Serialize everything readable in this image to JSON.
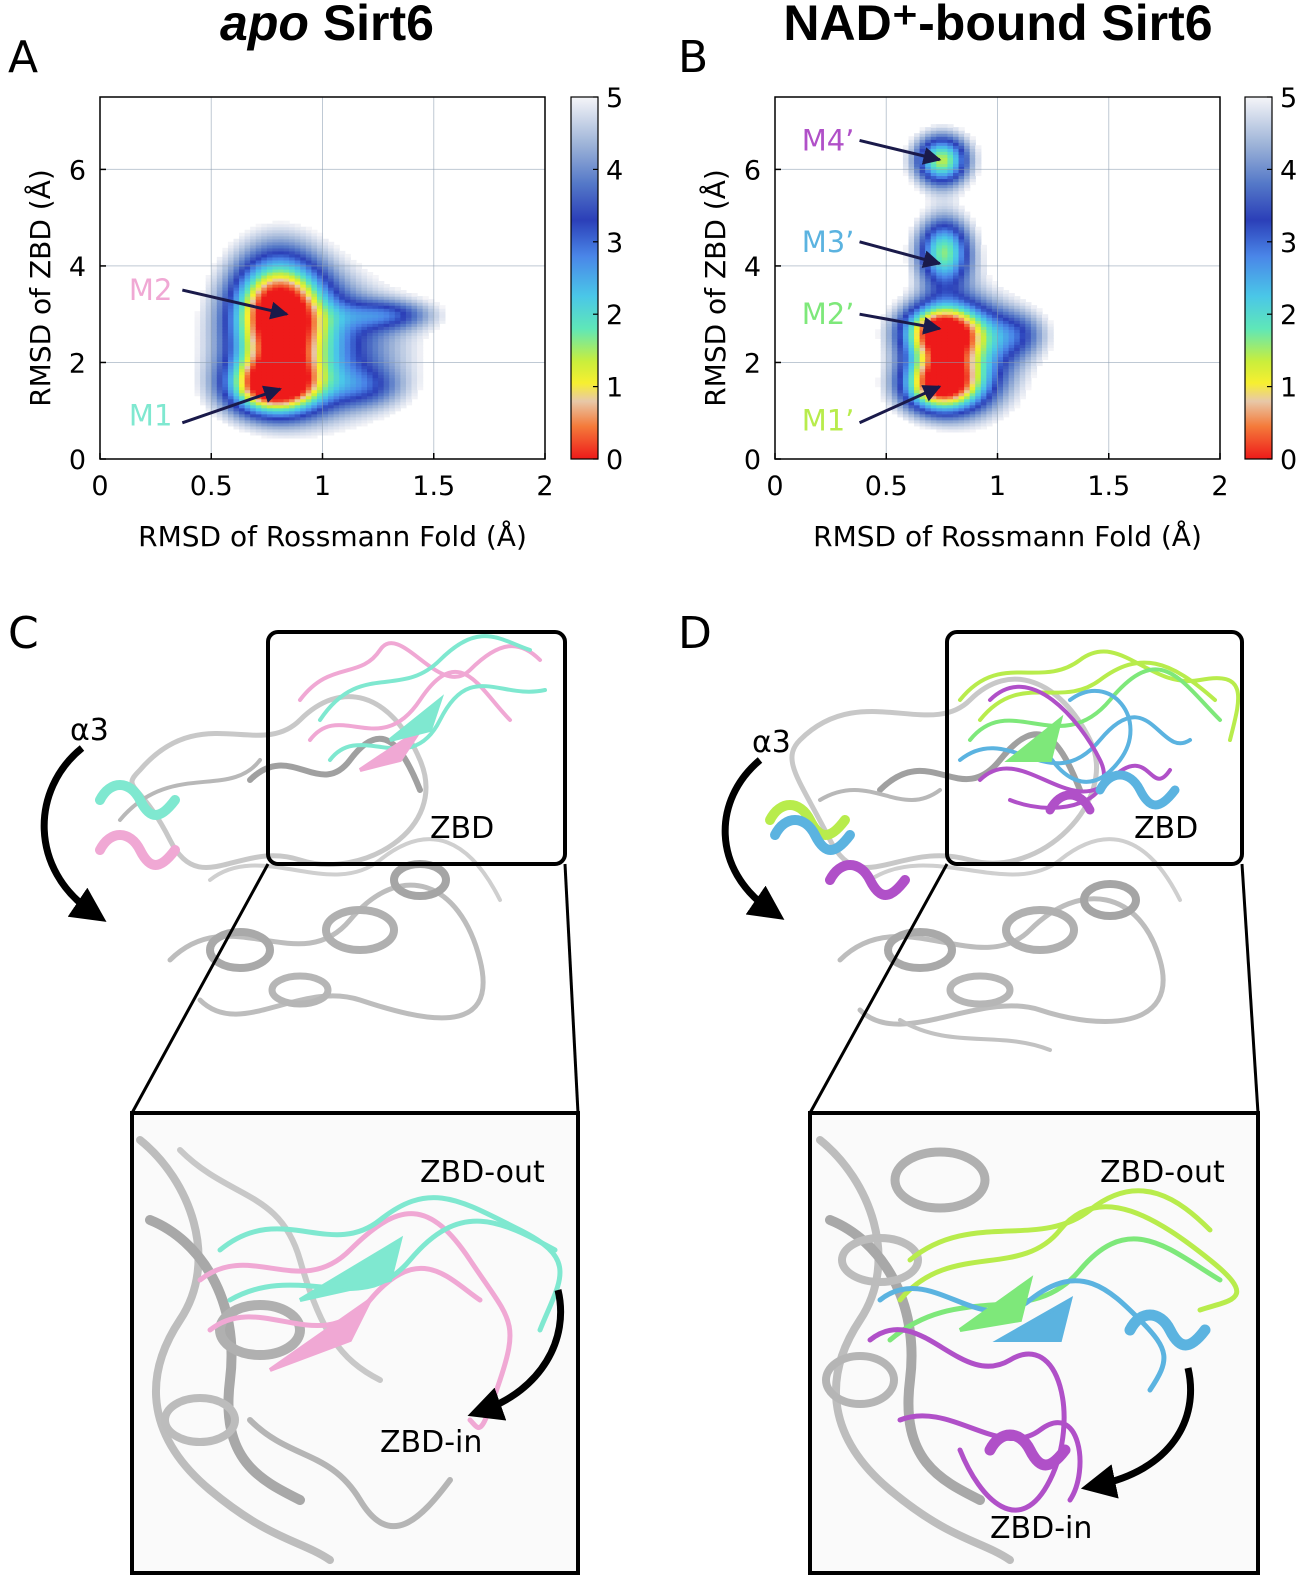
{
  "panels": {
    "A": {
      "label": "A"
    },
    "B": {
      "label": "B"
    },
    "C": {
      "label": "C",
      "alpha_label": "α3",
      "zbd_label": "ZBD",
      "out_label": "ZBD-out",
      "in_label": "ZBD-in"
    },
    "D": {
      "label": "D",
      "alpha_label": "α3",
      "zbd_label": "ZBD",
      "out_label": "ZBD-out",
      "in_label": "ZBD-in"
    }
  },
  "colors": {
    "M1": "#7fe8d0",
    "M2": "#f0a8d4",
    "M1p": "#b8ec4c",
    "M2p": "#7ee87a",
    "M3p": "#5bb3e0",
    "M4p": "#b050c8",
    "protein_grey": "#c4c4c4",
    "arrow_navy": "#1a1a4a"
  },
  "chart_data": [
    {
      "type": "heatmap",
      "title_italic": "apo",
      "title_rest": " Sirt6",
      "xlabel": "RMSD of Rossmann Fold (Å)",
      "ylabel": "RMSD of ZBD (Å)",
      "xlim": [
        0,
        2
      ],
      "ylim": [
        0,
        7.5
      ],
      "xticks": [
        0,
        0.5,
        1,
        1.5,
        2
      ],
      "xtick_labels": [
        "0",
        "0.5",
        "1",
        "1.5",
        "2"
      ],
      "yticks": [
        0,
        2,
        4,
        6
      ],
      "ytick_labels": [
        "0",
        "2",
        "4",
        "6"
      ],
      "grid": true,
      "colorbar": {
        "min": 0,
        "max": 5,
        "ticks": [
          "0",
          "1",
          "2",
          "3",
          "4",
          "5"
        ]
      },
      "basins": [
        {
          "cx": 0.8,
          "cy": 3.1,
          "sx": 0.15,
          "sy": 0.85,
          "depth": 5.2
        },
        {
          "cx": 0.78,
          "cy": 1.5,
          "sx": 0.15,
          "sy": 0.42,
          "depth": 4.8
        },
        {
          "cx": 0.97,
          "cy": 2.3,
          "sx": 0.28,
          "sy": 1.0,
          "depth": 2.6
        },
        {
          "cx": 1.3,
          "cy": 3.0,
          "sx": 0.15,
          "sy": 0.22,
          "depth": 1.7
        },
        {
          "cx": 1.2,
          "cy": 1.5,
          "sx": 0.12,
          "sy": 0.3,
          "depth": 1.2
        }
      ],
      "annotations": [
        {
          "text": "M2",
          "color_key": "M2",
          "text_x": 0.13,
          "text_y": 3.5,
          "arrow_from": [
            0.37,
            3.5
          ],
          "arrow_to": [
            0.84,
            3.0
          ]
        },
        {
          "text": "M1",
          "color_key": "M1",
          "text_x": 0.13,
          "text_y": 0.9,
          "arrow_from": [
            0.37,
            0.75
          ],
          "arrow_to": [
            0.81,
            1.45
          ]
        }
      ]
    },
    {
      "type": "heatmap",
      "title_italic": "",
      "title_rest": "NAD⁺-bound Sirt6",
      "xlabel": "RMSD of Rossmann Fold (Å)",
      "ylabel": "RMSD of ZBD (Å)",
      "xlim": [
        0,
        2
      ],
      "ylim": [
        0,
        7.5
      ],
      "xticks": [
        0,
        0.5,
        1,
        1.5,
        2
      ],
      "xtick_labels": [
        "0",
        "0.5",
        "1",
        "1.5",
        "2"
      ],
      "yticks": [
        0,
        2,
        4,
        6
      ],
      "ytick_labels": [
        "0",
        "2",
        "4",
        "6"
      ],
      "grid": true,
      "colorbar": {
        "min": 0,
        "max": 5,
        "ticks": [
          "0",
          "1",
          "2",
          "3",
          "4",
          "5"
        ]
      },
      "basins": [
        {
          "cx": 0.75,
          "cy": 6.2,
          "sx": 0.09,
          "sy": 0.38,
          "depth": 4.2
        },
        {
          "cx": 0.76,
          "cy": 4.3,
          "sx": 0.09,
          "sy": 0.52,
          "depth": 3.9
        },
        {
          "cx": 0.74,
          "cy": 2.65,
          "sx": 0.13,
          "sy": 0.42,
          "depth": 5.3
        },
        {
          "cx": 0.74,
          "cy": 1.55,
          "sx": 0.13,
          "sy": 0.42,
          "depth": 5.3
        },
        {
          "cx": 0.9,
          "cy": 2.2,
          "sx": 0.16,
          "sy": 0.85,
          "depth": 2.4
        },
        {
          "cx": 1.1,
          "cy": 2.6,
          "sx": 0.1,
          "sy": 0.35,
          "depth": 1.4
        }
      ],
      "annotations": [
        {
          "text": "M4’",
          "color_key": "M4p",
          "text_x": 0.12,
          "text_y": 6.6,
          "arrow_from": [
            0.38,
            6.6
          ],
          "arrow_to": [
            0.74,
            6.2
          ]
        },
        {
          "text": "M3’",
          "color_key": "M3p",
          "text_x": 0.12,
          "text_y": 4.5,
          "arrow_from": [
            0.38,
            4.5
          ],
          "arrow_to": [
            0.74,
            4.05
          ]
        },
        {
          "text": "M2’",
          "color_key": "M2p",
          "text_x": 0.12,
          "text_y": 3.0,
          "arrow_from": [
            0.38,
            3.0
          ],
          "arrow_to": [
            0.74,
            2.7
          ]
        },
        {
          "text": "M1’",
          "color_key": "M1p",
          "text_x": 0.12,
          "text_y": 0.8,
          "arrow_from": [
            0.38,
            0.75
          ],
          "arrow_to": [
            0.74,
            1.5
          ]
        }
      ]
    }
  ]
}
